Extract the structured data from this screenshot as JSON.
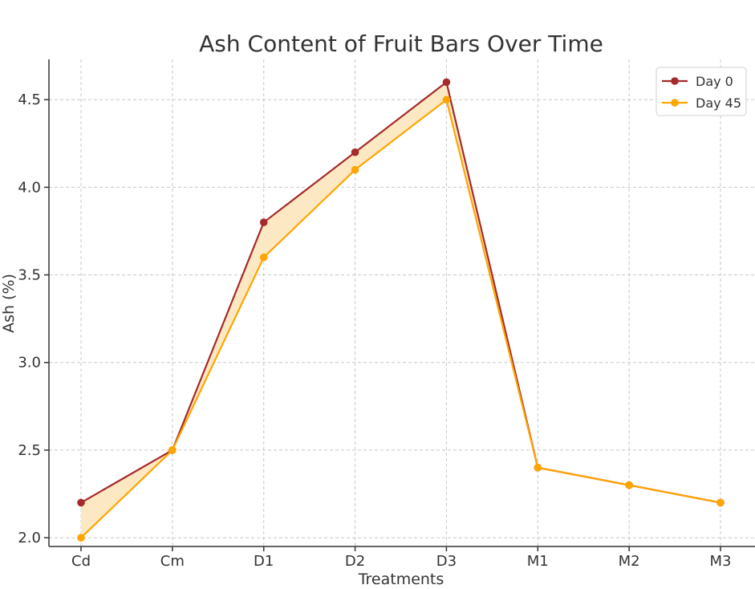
{
  "chart_data": {
    "type": "line",
    "title": "Ash Content of Fruit Bars Over Time",
    "xlabel": "Treatments",
    "ylabel": "Ash (%)",
    "categories": [
      "Cd",
      "Cm",
      "D1",
      "D2",
      "D3",
      "M1",
      "M2",
      "M3"
    ],
    "ylim": [
      1.95,
      4.73
    ],
    "yticks": [
      "2.0",
      "2.5",
      "3.0",
      "3.5",
      "4.0",
      "4.5"
    ],
    "grid": true,
    "legend_position": "top-right",
    "fill_between": {
      "from": "Day 0",
      "to": "Day 45",
      "color": "#fde8c4"
    },
    "series": [
      {
        "name": "Day 0",
        "color": "#a52a2a",
        "values": [
          2.2,
          2.5,
          3.8,
          4.2,
          4.6,
          2.4,
          2.3,
          2.2
        ]
      },
      {
        "name": "Day 45",
        "color": "#ffa500",
        "values": [
          2.0,
          2.5,
          3.6,
          4.1,
          4.5,
          2.4,
          2.3,
          2.2
        ]
      }
    ]
  }
}
